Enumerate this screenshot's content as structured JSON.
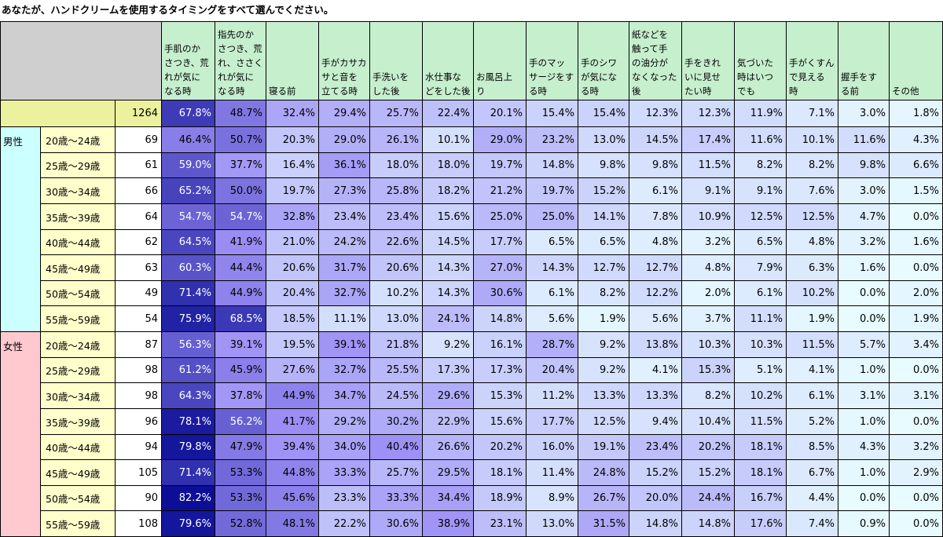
{
  "title": "あなたが、ハンドクリームを使用するタイミングをすべて選んでください。",
  "chart_data": {
    "type": "table",
    "columns": [
      "手肌のか\nさつき、荒\nれが気に\nなる時",
      "指先のか\nさつき、荒\nれ、ささく\nれが気に\nなる時",
      "寝る前",
      "手がカサカ\nサと音を\n立てる時",
      "手洗いを\nした後",
      "水仕事な\nどをした後",
      "お風呂上\nり",
      "手のマッ\nサージをす\nる時",
      "手のシワ\nが気にな\nる時",
      "紙などを\n触って手\nの油分が\nなくなった\n後",
      "手をきれ\nいに見せ\nたい時",
      "気づいた\n時はいつ\nでも",
      "手がくすん\nで見える\n時",
      "握手をす\nる前",
      "その他"
    ],
    "total": {
      "n": 1264,
      "values": [
        "67.8%",
        "48.7%",
        "32.4%",
        "29.4%",
        "25.7%",
        "22.4%",
        "20.1%",
        "15.4%",
        "15.4%",
        "12.3%",
        "12.3%",
        "11.9%",
        "7.1%",
        "3.0%",
        "1.8%"
      ]
    },
    "groups": [
      {
        "label": "男性",
        "rows": [
          {
            "age": "20歳～24歳",
            "n": 69,
            "values": [
              "46.4%",
              "50.7%",
              "20.3%",
              "29.0%",
              "26.1%",
              "10.1%",
              "29.0%",
              "23.2%",
              "13.0%",
              "14.5%",
              "17.4%",
              "11.6%",
              "10.1%",
              "11.6%",
              "4.3%"
            ]
          },
          {
            "age": "25歳～29歳",
            "n": 61,
            "values": [
              "59.0%",
              "37.7%",
              "16.4%",
              "36.1%",
              "18.0%",
              "18.0%",
              "19.7%",
              "14.8%",
              "9.8%",
              "9.8%",
              "11.5%",
              "8.2%",
              "8.2%",
              "9.8%",
              "6.6%"
            ]
          },
          {
            "age": "30歳～34歳",
            "n": 66,
            "values": [
              "65.2%",
              "50.0%",
              "19.7%",
              "27.3%",
              "25.8%",
              "18.2%",
              "21.2%",
              "19.7%",
              "15.2%",
              "6.1%",
              "9.1%",
              "9.1%",
              "7.6%",
              "3.0%",
              "1.5%"
            ]
          },
          {
            "age": "35歳～39歳",
            "n": 64,
            "values": [
              "54.7%",
              "54.7%",
              "32.8%",
              "23.4%",
              "23.4%",
              "15.6%",
              "25.0%",
              "25.0%",
              "14.1%",
              "7.8%",
              "10.9%",
              "12.5%",
              "12.5%",
              "4.7%",
              "0.0%"
            ]
          },
          {
            "age": "40歳～44歳",
            "n": 62,
            "values": [
              "64.5%",
              "41.9%",
              "21.0%",
              "24.2%",
              "22.6%",
              "14.5%",
              "17.7%",
              "6.5%",
              "6.5%",
              "4.8%",
              "3.2%",
              "6.5%",
              "4.8%",
              "3.2%",
              "1.6%"
            ]
          },
          {
            "age": "45歳～49歳",
            "n": 63,
            "values": [
              "60.3%",
              "44.4%",
              "20.6%",
              "31.7%",
              "20.6%",
              "14.3%",
              "27.0%",
              "14.3%",
              "12.7%",
              "12.7%",
              "4.8%",
              "7.9%",
              "6.3%",
              "1.6%",
              "0.0%"
            ]
          },
          {
            "age": "50歳～54歳",
            "n": 49,
            "values": [
              "71.4%",
              "44.9%",
              "20.4%",
              "32.7%",
              "10.2%",
              "14.3%",
              "30.6%",
              "6.1%",
              "8.2%",
              "12.2%",
              "2.0%",
              "6.1%",
              "10.2%",
              "0.0%",
              "2.0%"
            ]
          },
          {
            "age": "55歳～59歳",
            "n": 54,
            "values": [
              "75.9%",
              "68.5%",
              "18.5%",
              "11.1%",
              "13.0%",
              "24.1%",
              "14.8%",
              "5.6%",
              "1.9%",
              "5.6%",
              "3.7%",
              "11.1%",
              "1.9%",
              "0.0%",
              "1.9%"
            ]
          }
        ]
      },
      {
        "label": "女性",
        "rows": [
          {
            "age": "20歳～24歳",
            "n": 87,
            "values": [
              "56.3%",
              "39.1%",
              "19.5%",
              "39.1%",
              "21.8%",
              "9.2%",
              "16.1%",
              "28.7%",
              "9.2%",
              "13.8%",
              "10.3%",
              "10.3%",
              "11.5%",
              "5.7%",
              "3.4%"
            ]
          },
          {
            "age": "25歳～29歳",
            "n": 98,
            "values": [
              "61.2%",
              "45.9%",
              "27.6%",
              "32.7%",
              "25.5%",
              "17.3%",
              "17.3%",
              "20.4%",
              "9.2%",
              "4.1%",
              "15.3%",
              "5.1%",
              "4.1%",
              "1.0%",
              "0.0%"
            ]
          },
          {
            "age": "30歳～34歳",
            "n": 98,
            "values": [
              "64.3%",
              "37.8%",
              "44.9%",
              "34.7%",
              "24.5%",
              "29.6%",
              "15.3%",
              "11.2%",
              "13.3%",
              "13.3%",
              "8.2%",
              "10.2%",
              "6.1%",
              "3.1%",
              "3.1%"
            ]
          },
          {
            "age": "35歳～39歳",
            "n": 96,
            "values": [
              "78.1%",
              "56.2%",
              "41.7%",
              "29.2%",
              "30.2%",
              "22.9%",
              "15.6%",
              "17.7%",
              "12.5%",
              "9.4%",
              "10.4%",
              "11.5%",
              "5.2%",
              "1.0%",
              "0.0%"
            ]
          },
          {
            "age": "40歳～44歳",
            "n": 94,
            "values": [
              "79.8%",
              "47.9%",
              "39.4%",
              "34.0%",
              "40.4%",
              "26.6%",
              "20.2%",
              "16.0%",
              "19.1%",
              "23.4%",
              "20.2%",
              "18.1%",
              "8.5%",
              "4.3%",
              "3.2%"
            ]
          },
          {
            "age": "45歳～49歳",
            "n": 105,
            "values": [
              "71.4%",
              "53.3%",
              "44.8%",
              "33.3%",
              "25.7%",
              "29.5%",
              "18.1%",
              "11.4%",
              "24.8%",
              "15.2%",
              "15.2%",
              "18.1%",
              "6.7%",
              "1.0%",
              "2.9%"
            ]
          },
          {
            "age": "50歳～54歳",
            "n": 90,
            "values": [
              "82.2%",
              "53.3%",
              "45.6%",
              "23.3%",
              "33.3%",
              "34.4%",
              "18.9%",
              "8.9%",
              "26.7%",
              "20.0%",
              "24.4%",
              "16.7%",
              "4.4%",
              "0.0%",
              "0.0%"
            ]
          },
          {
            "age": "55歳～59歳",
            "n": 108,
            "values": [
              "79.6%",
              "52.8%",
              "48.1%",
              "22.2%",
              "30.6%",
              "38.9%",
              "23.1%",
              "13.0%",
              "31.5%",
              "14.8%",
              "14.8%",
              "17.6%",
              "7.4%",
              "0.9%",
              "0.0%"
            ]
          }
        ]
      }
    ],
    "colors": {
      "header": "#c6efce",
      "corner": "#cfcfcf",
      "total_row": "#ebf19c",
      "male": "#ccffff",
      "female": "#ffc9cf",
      "age_label": "#ffffcc",
      "heat_low": "#e8fbff",
      "heat_mid": "#9c8ff5",
      "heat_high": "#0c0f96"
    }
  }
}
